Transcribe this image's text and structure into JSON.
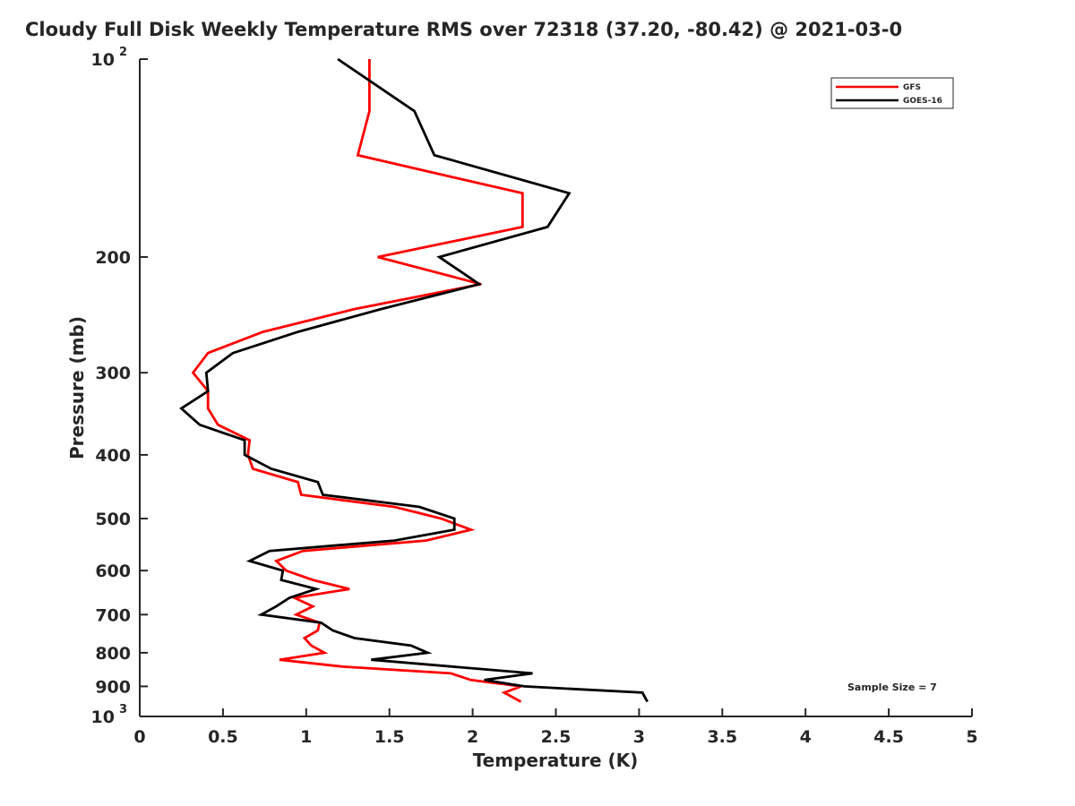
{
  "chart_data": {
    "type": "line",
    "title": "Cloudy Full Disk Weekly Temperature RMS over 72318 (37.20, -80.42) @ 2021-03-0",
    "xlabel": "Temperature (K)",
    "ylabel": "Pressure (mb)",
    "xlim": [
      0,
      5
    ],
    "ylim": [
      100,
      1000
    ],
    "yscale": "log",
    "yreversed": true,
    "grid": false,
    "legend_placement": "top-right",
    "x_ticks": [
      "0",
      "0.5",
      "1",
      "1.5",
      "2",
      "2.5",
      "3",
      "3.5",
      "4",
      "4.5",
      "5"
    ],
    "y_ticks": [
      {
        "v": 100,
        "label": "10",
        "sup": "2"
      },
      {
        "v": 200,
        "label": "200"
      },
      {
        "v": 300,
        "label": "300"
      },
      {
        "v": 400,
        "label": "400"
      },
      {
        "v": 500,
        "label": "500"
      },
      {
        "v": 600,
        "label": "600"
      },
      {
        "v": 700,
        "label": "700"
      },
      {
        "v": 800,
        "label": "800"
      },
      {
        "v": 900,
        "label": "900"
      },
      {
        "v": 1000,
        "label": "10",
        "sup": "3"
      }
    ],
    "annotation": "Sample Size = 7",
    "series": [
      {
        "name": "GFS",
        "color": "#ff0000",
        "points": [
          [
            1.38,
            100
          ],
          [
            1.38,
            120
          ],
          [
            1.31,
            140
          ],
          [
            2.3,
            160
          ],
          [
            2.3,
            180
          ],
          [
            1.43,
            200
          ],
          [
            2.05,
            220
          ],
          [
            1.29,
            240
          ],
          [
            0.74,
            260
          ],
          [
            0.41,
            280
          ],
          [
            0.32,
            300
          ],
          [
            0.41,
            320
          ],
          [
            0.41,
            340
          ],
          [
            0.47,
            360
          ],
          [
            0.66,
            380
          ],
          [
            0.65,
            400
          ],
          [
            0.68,
            420
          ],
          [
            0.95,
            440
          ],
          [
            0.97,
            460
          ],
          [
            1.53,
            480
          ],
          [
            1.81,
            500
          ],
          [
            1.99,
            520
          ],
          [
            1.72,
            540
          ],
          [
            0.98,
            560
          ],
          [
            0.82,
            580
          ],
          [
            0.88,
            600
          ],
          [
            1.04,
            620
          ],
          [
            1.26,
            640
          ],
          [
            0.93,
            660
          ],
          [
            1.04,
            680
          ],
          [
            0.94,
            700
          ],
          [
            1.08,
            720
          ],
          [
            1.07,
            740
          ],
          [
            0.99,
            760
          ],
          [
            1.03,
            780
          ],
          [
            1.11,
            800
          ],
          [
            0.84,
            820
          ],
          [
            1.22,
            840
          ],
          [
            1.87,
            860
          ],
          [
            1.99,
            880
          ],
          [
            2.29,
            900
          ],
          [
            2.19,
            920
          ],
          [
            2.29,
            950
          ]
        ]
      },
      {
        "name": "GOES-16",
        "color": "#000000",
        "points": [
          [
            1.19,
            100
          ],
          [
            1.65,
            120
          ],
          [
            1.77,
            140
          ],
          [
            2.58,
            160
          ],
          [
            2.45,
            180
          ],
          [
            1.8,
            200
          ],
          [
            2.04,
            220
          ],
          [
            1.45,
            240
          ],
          [
            0.95,
            260
          ],
          [
            0.56,
            280
          ],
          [
            0.4,
            300
          ],
          [
            0.41,
            320
          ],
          [
            0.25,
            340
          ],
          [
            0.36,
            360
          ],
          [
            0.63,
            380
          ],
          [
            0.63,
            400
          ],
          [
            0.79,
            420
          ],
          [
            1.07,
            440
          ],
          [
            1.1,
            460
          ],
          [
            1.68,
            480
          ],
          [
            1.89,
            500
          ],
          [
            1.89,
            520
          ],
          [
            1.53,
            540
          ],
          [
            0.78,
            560
          ],
          [
            0.66,
            580
          ],
          [
            0.86,
            600
          ],
          [
            0.85,
            620
          ],
          [
            1.06,
            640
          ],
          [
            0.9,
            660
          ],
          [
            0.82,
            680
          ],
          [
            0.73,
            700
          ],
          [
            1.09,
            720
          ],
          [
            1.16,
            740
          ],
          [
            1.29,
            760
          ],
          [
            1.63,
            780
          ],
          [
            1.73,
            800
          ],
          [
            1.39,
            820
          ],
          [
            2.36,
            860
          ],
          [
            2.07,
            880
          ],
          [
            2.31,
            900
          ],
          [
            3.02,
            920
          ],
          [
            3.05,
            950
          ]
        ]
      }
    ]
  }
}
